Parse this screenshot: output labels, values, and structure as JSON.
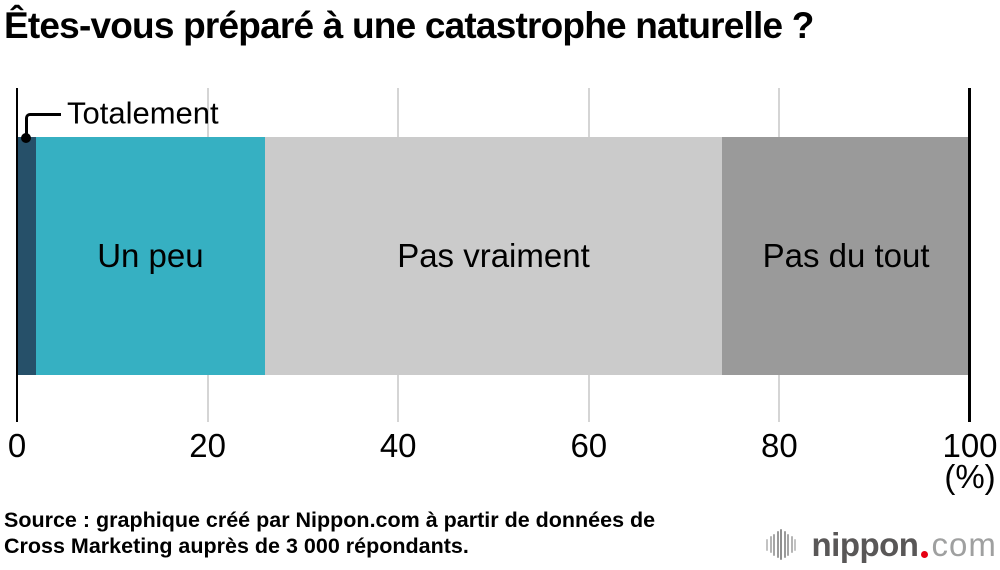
{
  "title": "Êtes-vous préparé à une catastrophe naturelle ?",
  "chart_data": {
    "type": "bar",
    "variant": "horizontal-stacked-100",
    "title": "Êtes-vous préparé à une catastrophe naturelle ?",
    "categories": [
      "Totalement",
      "Un peu",
      "Pas vraiment",
      "Pas du tout"
    ],
    "values": [
      2,
      24,
      48,
      26
    ],
    "unit": "%",
    "colors": [
      "#265069",
      "#36b0c2",
      "#cbcbcb",
      "#9a9a9a"
    ],
    "xlim": [
      0,
      100
    ],
    "x_ticks": [
      0,
      20,
      40,
      60,
      80,
      100
    ],
    "x_tick_labels": [
      "0",
      "20",
      "40",
      "60",
      "80",
      "100"
    ],
    "axis_unit_label": "(%)",
    "grid": true,
    "gridline_color": "#d5d5d5",
    "axis_color": "#000000",
    "callout": {
      "label": "Totalement",
      "segment_index": 0
    }
  },
  "source": {
    "line1": "Source : graphique créé par Nippon.com à partir de données de",
    "line2": "Cross Marketing auprès de 3 000 répondants."
  },
  "logo": {
    "icon": "soundwave-icon",
    "name": "nippon",
    "tld": "com",
    "name_color": "#595757",
    "tld_color": "#9fa0a0",
    "dot_color": "#e60012"
  }
}
